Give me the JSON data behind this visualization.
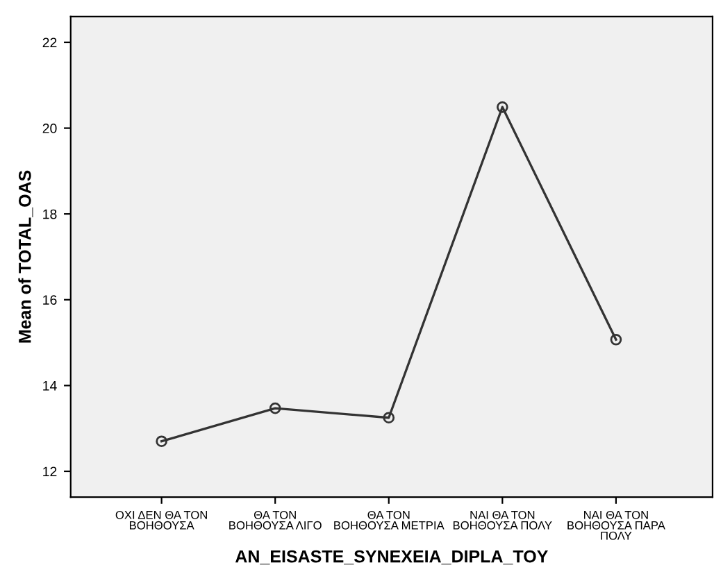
{
  "chart_data": {
    "type": "line",
    "xlabel": "AN_EISASTE_SYNEXEIA_DIPLA_TOY",
    "ylabel": "Mean of TOTAL_OAS",
    "categories": [
      "ΟΧΙ ΔΕΝ ΘΑ ΤΟΝ\nΒΟΗΘΟΥΣΑ",
      "ΘΑ ΤΟΝ\nΒΟΗΘΟΥΣΑ ΛΙΓΟ",
      "ΘΑ ΤΟΝ\nΒΟΗΘΟΥΣΑ ΜΕΤΡΙΑ",
      "ΝΑΙ ΘΑ ΤΟΝ\nΒΟΗΘΟΥΣΑ ΠΟΛΥ",
      "ΝΑΙ ΘΑ ΤΟΝ\nΒΟΗΘΟΥΣΑ ΠΑΡΑ\nΠΟΛΥ"
    ],
    "values": [
      12.7,
      13.47,
      13.25,
      20.49,
      15.07
    ],
    "color": "#333333",
    "marker": "circle",
    "ylim": [
      11.4,
      22.6
    ],
    "yticks": [
      12,
      14,
      16,
      18,
      20,
      22
    ],
    "grid": false
  }
}
